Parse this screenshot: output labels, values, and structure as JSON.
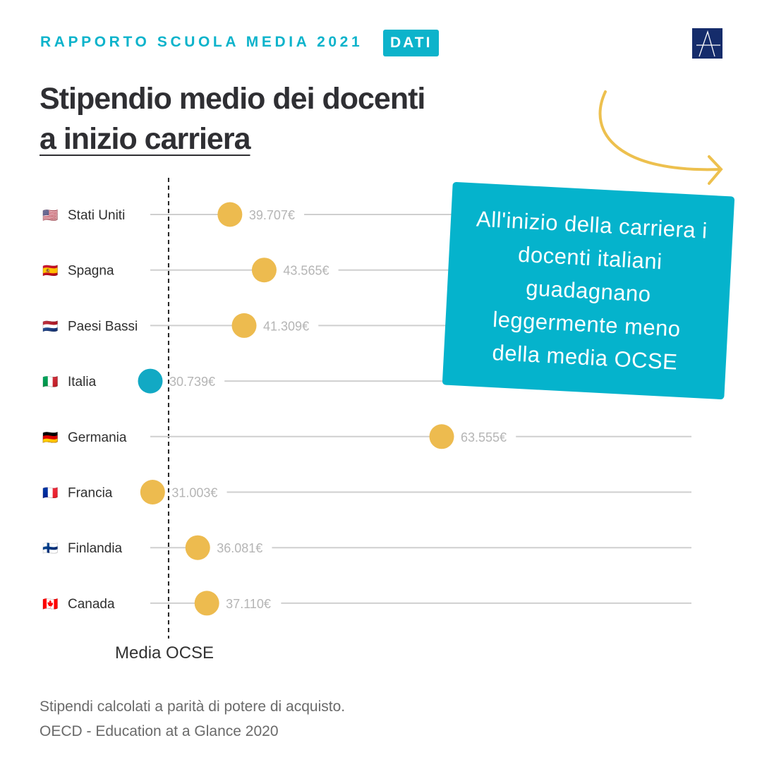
{
  "header": {
    "kicker": "RAPPORTO SCUOLA MEDIA 2021",
    "badge": "DATI",
    "logo_letter": "A"
  },
  "title": {
    "line1": "Stipendio medio dei docenti",
    "line2": "a inizio carriera"
  },
  "callout": {
    "text": "All'inizio della carriera i docenti italiani guadagnano leggermente meno della media OCSE"
  },
  "footer": {
    "note": "Stipendi calcolati a parità di potere di acquisto.",
    "source": "OECD - Education at a Glance 2020"
  },
  "colors": {
    "accent": "#0db3cb",
    "dot": "#edbb4f",
    "highlight": "#12a9c4",
    "arrow": "#edc04e"
  },
  "chart_data": {
    "type": "scatter",
    "title": "Stipendio medio dei docenti a inizio carriera",
    "unit": "€",
    "reference_line": {
      "label": "Media OCSE",
      "value_estimated": 32800
    },
    "xlim": [
      30739,
      63555
    ],
    "highlight": "Italia",
    "points": [
      {
        "country": "Stati Uniti",
        "flag": "🇺🇸",
        "value": 39707,
        "label": "39.707€"
      },
      {
        "country": "Spagna",
        "flag": "🇪🇸",
        "value": 43565,
        "label": "43.565€"
      },
      {
        "country": "Paesi Bassi",
        "flag": "🇳🇱",
        "value": 41309,
        "label": "41.309€"
      },
      {
        "country": "Italia",
        "flag": "🇮🇹",
        "value": 30739,
        "label": "30.739€"
      },
      {
        "country": "Germania",
        "flag": "🇩🇪",
        "value": 63555,
        "label": "63.555€"
      },
      {
        "country": "Francia",
        "flag": "🇫🇷",
        "value": 31003,
        "label": "31.003€"
      },
      {
        "country": "Finlandia",
        "flag": "🇫🇮",
        "value": 36081,
        "label": "36.081€"
      },
      {
        "country": "Canada",
        "flag": "🇨🇦",
        "value": 37110,
        "label": "37.110€"
      }
    ]
  }
}
